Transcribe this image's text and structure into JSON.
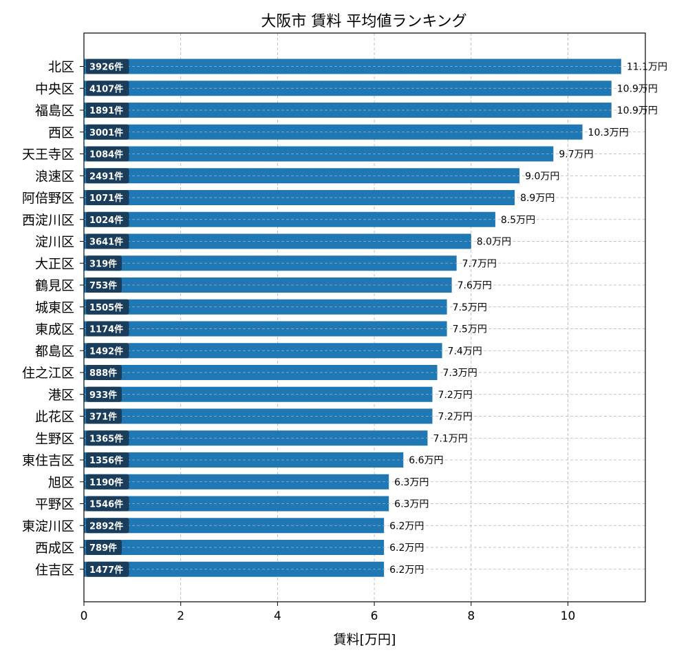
{
  "chart_data": {
    "type": "bar",
    "orientation": "horizontal",
    "title": "大阪市 賃料 平均値ランキング",
    "xlabel": "賃料[万円]",
    "ylabel": "",
    "xlim": [
      0,
      11.6
    ],
    "xticks": [
      0,
      2,
      4,
      6,
      8,
      10
    ],
    "grid": true,
    "value_suffix": "万円",
    "count_suffix": "件",
    "colors": {
      "bar": "#1f77b4",
      "count_badge": "#1a3d5c",
      "grid": "#b0b0b0"
    },
    "categories": [
      "北区",
      "中央区",
      "福島区",
      "西区",
      "天王寺区",
      "浪速区",
      "阿倍野区",
      "西淀川区",
      "淀川区",
      "大正区",
      "鶴見区",
      "城東区",
      "東成区",
      "都島区",
      "住之江区",
      "港区",
      "此花区",
      "生野区",
      "東住吉区",
      "旭区",
      "平野区",
      "東淀川区",
      "西成区",
      "住吉区"
    ],
    "values": [
      11.1,
      10.9,
      10.9,
      10.3,
      9.7,
      9.0,
      8.9,
      8.5,
      8.0,
      7.7,
      7.6,
      7.5,
      7.5,
      7.4,
      7.3,
      7.2,
      7.2,
      7.1,
      6.6,
      6.3,
      6.3,
      6.2,
      6.2,
      6.2
    ],
    "counts": [
      3926,
      4107,
      1891,
      3001,
      1084,
      2491,
      1071,
      1024,
      3641,
      319,
      753,
      1505,
      1174,
      1492,
      888,
      933,
      371,
      1365,
      1356,
      1190,
      1546,
      2892,
      789,
      1477
    ]
  }
}
